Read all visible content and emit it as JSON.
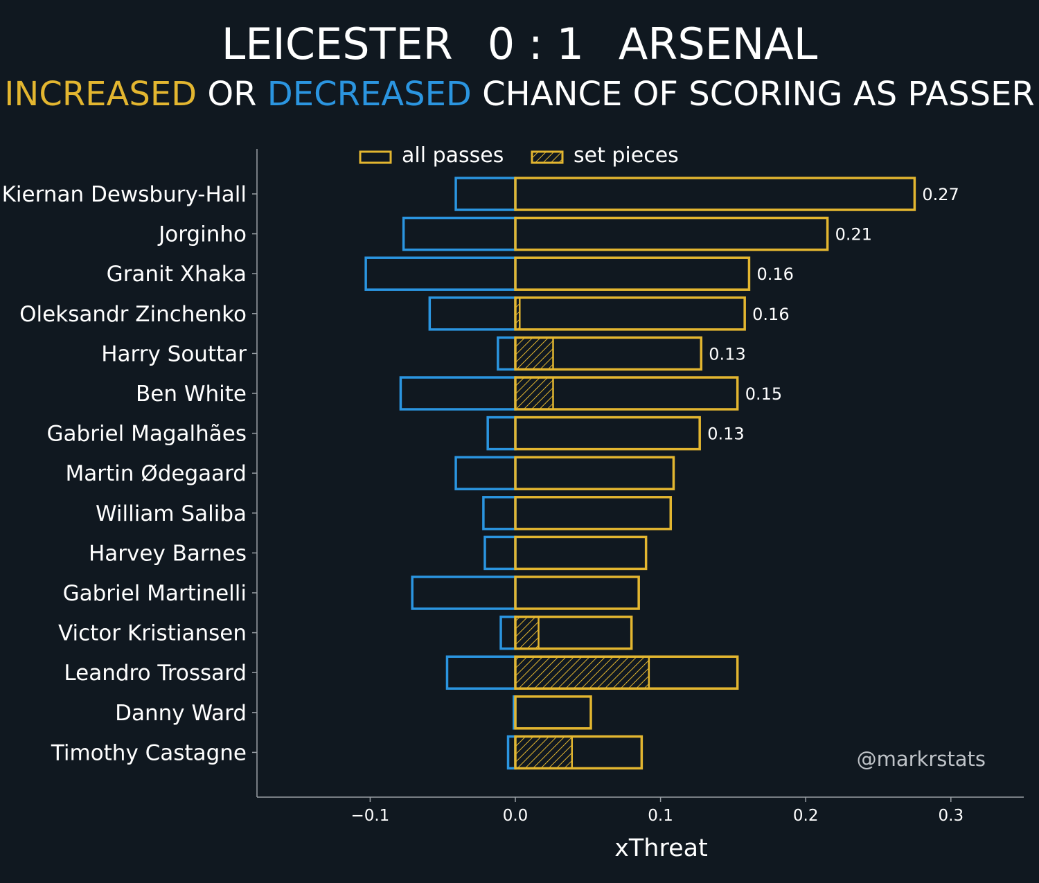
{
  "header": {
    "home_team": "LEICESTER",
    "score": "0 : 1",
    "away_team": "ARSENAL",
    "subtitle_increased": "INCREASED",
    "subtitle_or": "OR",
    "subtitle_decreased": "DECREASED",
    "subtitle_rest": "CHANCE OF SCORING AS PASSER"
  },
  "watermark": "@markrstats",
  "colors": {
    "background": "#101820",
    "increased": "#e3b630",
    "decreased": "#2b95e0",
    "text": "#ffffff",
    "axis": "#9aa0a6"
  },
  "chart_data": {
    "type": "bar",
    "orientation": "horizontal",
    "xlabel": "xThreat",
    "xlim": [
      -0.18,
      0.35
    ],
    "xticks": [
      -0.1,
      0.0,
      0.1,
      0.2,
      0.3
    ],
    "xtick_labels": [
      "−0.1",
      "0.0",
      "0.1",
      "0.2",
      "0.3"
    ],
    "legend": {
      "placement": "top-center",
      "entries": [
        "all passes",
        "set pieces"
      ]
    },
    "categories": [
      "Kiernan Dewsbury-Hall",
      "Jorginho",
      "Granit Xhaka",
      "Oleksandr Zinchenko",
      "Harry Souttar",
      "Ben White",
      "Gabriel Magalhães",
      "Martin Ødegaard",
      "William Saliba",
      "Harvey Barnes",
      "Gabriel Martinelli",
      "Victor Kristiansen",
      "Leandro Trossard",
      "Danny Ward",
      "Timothy Castagne"
    ],
    "series": [
      {
        "name": "all passes",
        "positive": [
          0.275,
          0.215,
          0.161,
          0.158,
          0.128,
          0.153,
          0.127,
          0.109,
          0.107,
          0.09,
          0.085,
          0.08,
          0.153,
          0.052,
          0.087
        ],
        "negative": [
          -0.041,
          -0.077,
          -0.103,
          -0.059,
          -0.012,
          -0.079,
          -0.019,
          -0.041,
          -0.022,
          -0.021,
          -0.071,
          -0.01,
          -0.047,
          -0.001,
          -0.005
        ]
      },
      {
        "name": "set pieces",
        "values": [
          0,
          0,
          0,
          0.003,
          0.026,
          0.026,
          0,
          0,
          0,
          0,
          0,
          0.016,
          0.092,
          0,
          0.039
        ]
      }
    ],
    "value_labels": [
      "0.27",
      "0.21",
      "0.16",
      "0.16",
      "0.13",
      "0.15",
      "0.13",
      "",
      "",
      "",
      "",
      "",
      "",
      "",
      ""
    ]
  }
}
